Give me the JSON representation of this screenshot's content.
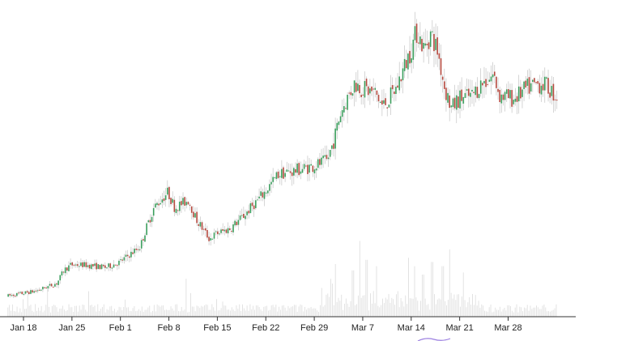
{
  "chart_data": {
    "type": "candlestick",
    "title": "",
    "xlabel": "",
    "ylabel": "",
    "legend": "none",
    "grid": false,
    "y_axis": "hidden",
    "x_ticks": [
      "Jan 18",
      "Jan 25",
      "Feb 1",
      "Feb 8",
      "Feb 15",
      "Feb 22",
      "Feb 29",
      "Mar 7",
      "Mar 14",
      "Mar 21",
      "Mar 28"
    ],
    "x_range_days": [
      0,
      77
    ],
    "y_range": [
      0,
      100
    ],
    "colors": {
      "up": "#3a9e5c",
      "down": "#b5483e",
      "wick": "#c4c4c4",
      "volume": "#e0e0e0",
      "axis": "#333333",
      "extra_mark": "#9b7fe0"
    },
    "price_path": [
      [
        -2.3,
        2
      ],
      [
        2,
        4
      ],
      [
        5,
        7
      ],
      [
        6,
        12
      ],
      [
        7,
        14
      ],
      [
        9,
        14
      ],
      [
        12,
        13
      ],
      [
        14,
        15
      ],
      [
        15,
        17
      ],
      [
        17,
        21
      ],
      [
        18,
        29
      ],
      [
        19,
        36
      ],
      [
        21,
        42
      ],
      [
        22,
        36
      ],
      [
        24,
        39
      ],
      [
        25,
        32
      ],
      [
        26,
        28
      ],
      [
        27,
        24
      ],
      [
        28,
        26
      ],
      [
        30,
        28
      ],
      [
        32,
        33
      ],
      [
        35,
        42
      ],
      [
        37,
        49
      ],
      [
        39,
        50
      ],
      [
        42,
        52
      ],
      [
        44,
        54
      ],
      [
        45,
        62
      ],
      [
        46,
        73
      ],
      [
        48,
        84
      ],
      [
        49,
        82
      ],
      [
        51,
        80
      ],
      [
        52,
        75
      ],
      [
        53,
        78
      ],
      [
        54,
        82
      ],
      [
        56,
        96
      ],
      [
        57,
        104
      ],
      [
        58,
        97
      ],
      [
        59,
        103
      ],
      [
        60,
        96
      ],
      [
        61,
        82
      ],
      [
        62,
        74
      ],
      [
        63,
        78
      ],
      [
        65,
        79
      ],
      [
        66,
        83
      ],
      [
        68,
        87
      ],
      [
        69,
        79
      ],
      [
        71,
        78
      ],
      [
        73,
        82
      ],
      [
        75,
        84
      ],
      [
        76,
        82
      ],
      [
        77,
        79
      ]
    ],
    "volume_peaks": [
      [
        23.5,
        18
      ],
      [
        45,
        25
      ],
      [
        47.5,
        22
      ],
      [
        48.5,
        36
      ],
      [
        49.5,
        27
      ],
      [
        51,
        24
      ],
      [
        55.5,
        28
      ],
      [
        56.5,
        24
      ],
      [
        57.5,
        20
      ],
      [
        59,
        26
      ],
      [
        60.5,
        24
      ],
      [
        61.5,
        32
      ],
      [
        63.5,
        21
      ]
    ]
  }
}
